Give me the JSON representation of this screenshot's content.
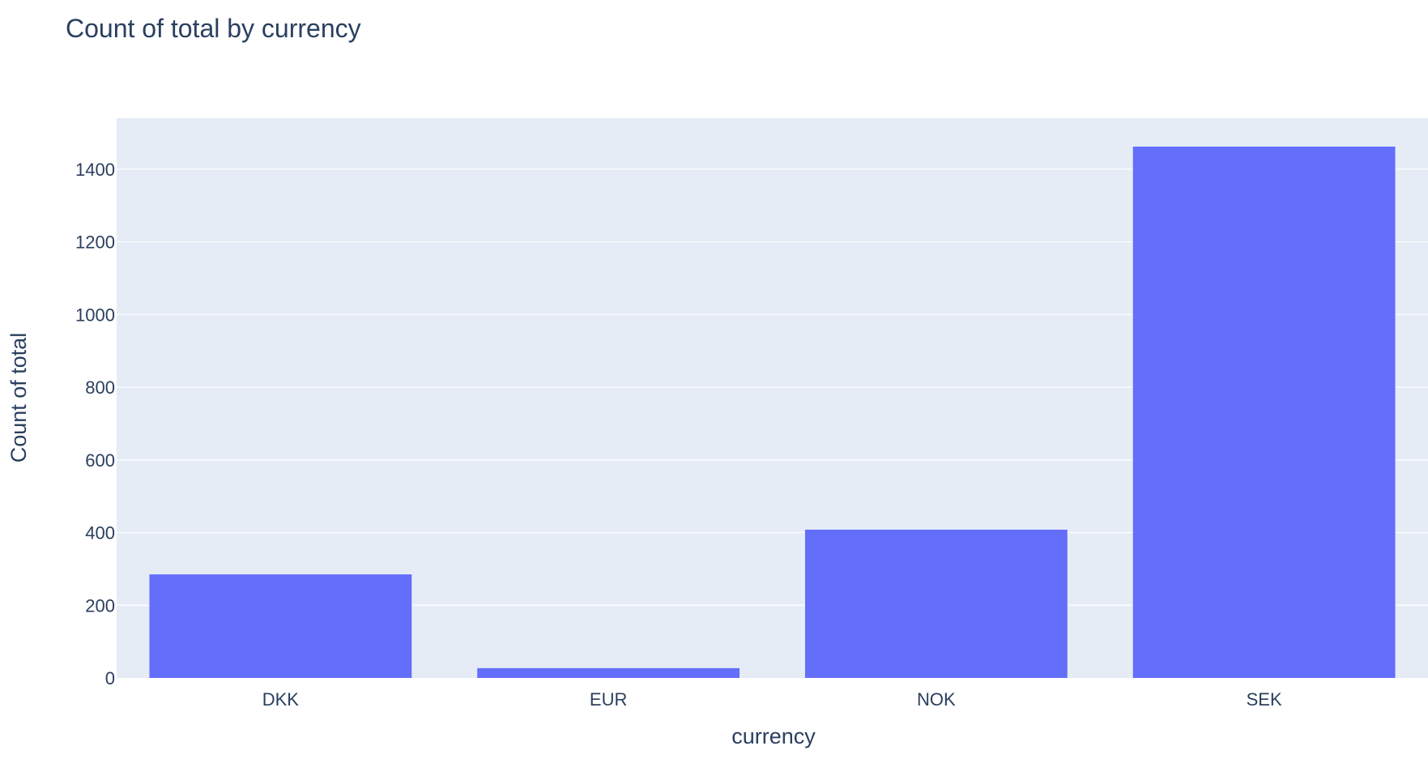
{
  "chart_data": {
    "type": "bar",
    "title": "Count of total by currency",
    "xlabel": "currency",
    "ylabel": "Count of total",
    "categories": [
      "DKK",
      "EUR",
      "NOK",
      "SEK"
    ],
    "values": [
      285,
      27,
      408,
      1462
    ],
    "ylim": [
      0,
      1540
    ],
    "yticks": [
      0,
      200,
      400,
      600,
      800,
      1000,
      1200,
      1400
    ],
    "ytick_labels": [
      "0",
      "200",
      "400",
      "600",
      "800",
      "1000",
      "1200",
      "1400"
    ],
    "grid": true,
    "bar_color": "#636efa",
    "plot_background": "#e5ecf6",
    "text_color": "#2a3f5f"
  }
}
